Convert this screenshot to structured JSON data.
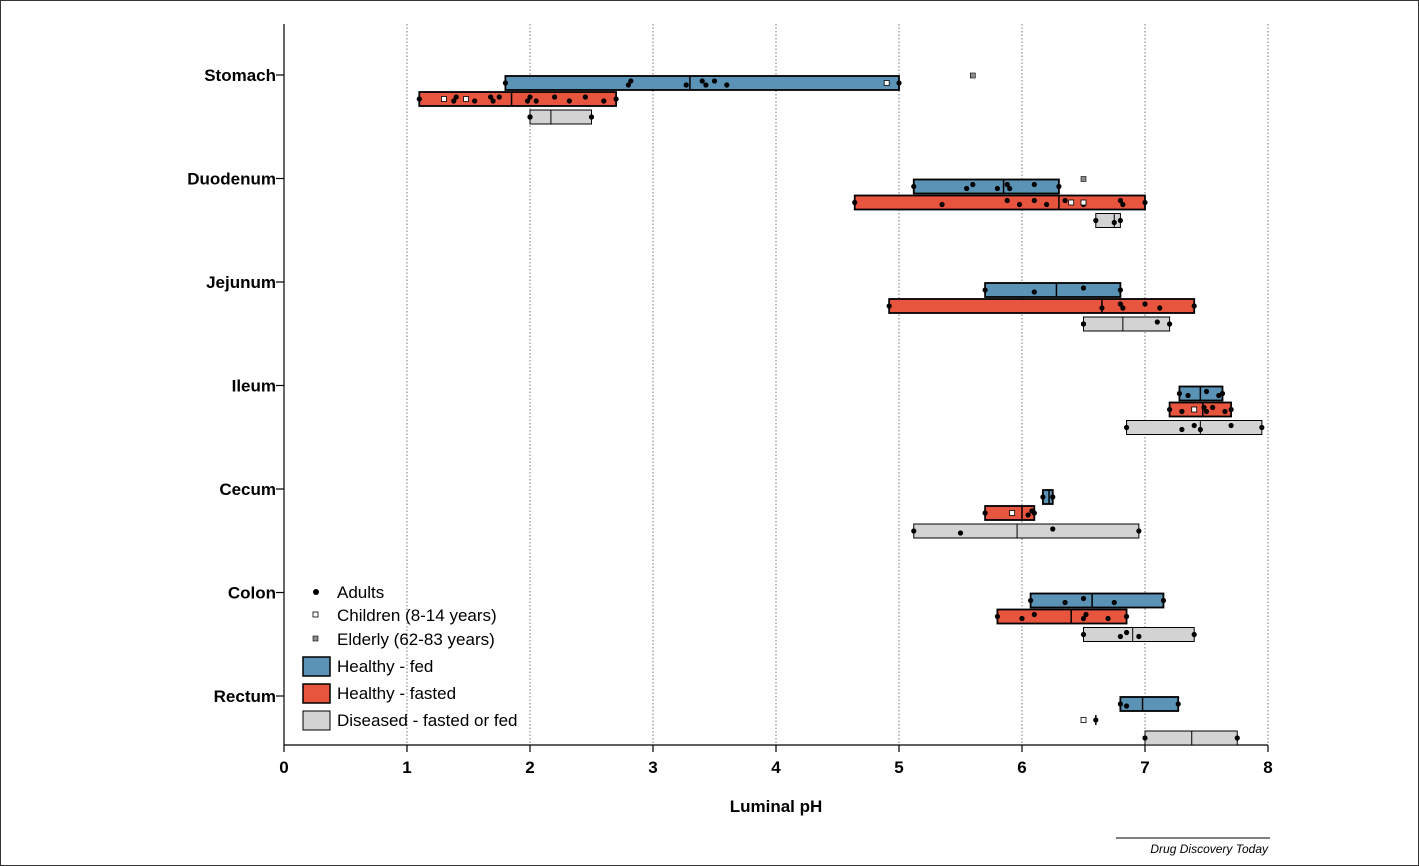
{
  "colors": {
    "fed": "#5a93b6",
    "fasted": "#e8553e",
    "diseased": "#d3d3d3",
    "elderly": "#8c8c8c"
  },
  "legend": {
    "adults": "Adults",
    "children": "Children (8-14 years)",
    "elderly": "Elderly (62-83 years)",
    "fed": "Healthy - fed",
    "fasted": "Healthy - fasted",
    "diseased": "Diseased - fasted or fed"
  },
  "source": "Drug Discovery Today",
  "chart_data": {
    "type": "range-bar",
    "xlabel": "Luminal pH",
    "xlim": [
      0,
      8
    ],
    "xticks": [
      "0",
      "1",
      "2",
      "3",
      "4",
      "5",
      "6",
      "7",
      "8"
    ],
    "categories": [
      "Stomach",
      "Duodenum",
      "Jejunum",
      "Ileum",
      "Cecum",
      "Colon",
      "Rectum"
    ],
    "grid": "vertical-dotted",
    "legend_position": "bottom-left",
    "series": [
      {
        "name": "Healthy - fed",
        "color_key": "fed",
        "ranges": [
          {
            "category": "Stomach",
            "min": 1.8,
            "max": 5.0,
            "median": 3.3,
            "adults": [
              1.8,
              2.8,
              2.82,
              3.27,
              3.4,
              3.43,
              3.5,
              3.6,
              5.0
            ],
            "children": [
              4.9
            ],
            "elderly": [
              5.6
            ]
          },
          {
            "category": "Duodenum",
            "min": 5.12,
            "max": 6.3,
            "median": 5.85,
            "adults": [
              5.12,
              5.55,
              5.6,
              5.8,
              5.88,
              5.9,
              6.1,
              6.3
            ],
            "children": [],
            "elderly": [
              6.5
            ]
          },
          {
            "category": "Jejunum",
            "min": 5.7,
            "max": 6.8,
            "median": 6.28,
            "adults": [
              5.7,
              6.1,
              6.5,
              6.8
            ],
            "children": [],
            "elderly": []
          },
          {
            "category": "Ileum",
            "min": 7.28,
            "max": 7.63,
            "median": 7.45,
            "adults": [
              7.28,
              7.35,
              7.5,
              7.6,
              7.63
            ],
            "children": [],
            "elderly": []
          },
          {
            "category": "Cecum",
            "min": 6.17,
            "max": 6.25,
            "median": 6.22,
            "adults": [
              6.17,
              6.25
            ],
            "children": [],
            "elderly": []
          },
          {
            "category": "Colon",
            "min": 6.07,
            "max": 7.15,
            "median": 6.57,
            "adults": [
              6.07,
              6.35,
              6.5,
              6.75,
              7.15
            ],
            "children": [],
            "elderly": []
          },
          {
            "category": "Rectum",
            "min": 6.8,
            "max": 7.27,
            "median": 6.98,
            "adults": [
              6.8,
              6.85,
              7.27
            ],
            "children": [],
            "elderly": []
          }
        ]
      },
      {
        "name": "Healthy - fasted",
        "color_key": "fasted",
        "ranges": [
          {
            "category": "Stomach",
            "min": 1.1,
            "max": 2.7,
            "median": 1.85,
            "adults": [
              1.1,
              1.38,
              1.4,
              1.55,
              1.68,
              1.7,
              1.75,
              1.98,
              2.0,
              2.05,
              2.2,
              2.32,
              2.45,
              2.6,
              2.7
            ],
            "children": [
              1.3,
              1.48
            ],
            "elderly": []
          },
          {
            "category": "Duodenum",
            "min": 4.64,
            "max": 7.0,
            "median": 6.3,
            "adults": [
              4.64,
              5.35,
              5.88,
              5.98,
              6.1,
              6.2,
              6.35,
              6.5,
              6.8,
              6.82,
              7.0
            ],
            "children": [
              6.4,
              6.5
            ],
            "elderly": []
          },
          {
            "category": "Jejunum",
            "min": 4.92,
            "max": 7.4,
            "median": 6.65,
            "adults": [
              4.92,
              6.65,
              6.8,
              6.82,
              7.0,
              7.12,
              7.4
            ],
            "children": [],
            "elderly": []
          },
          {
            "category": "Ileum",
            "min": 7.2,
            "max": 7.7,
            "median": 7.47,
            "adults": [
              7.2,
              7.3,
              7.48,
              7.5,
              7.55,
              7.65,
              7.7
            ],
            "children": [
              7.4
            ],
            "elderly": []
          },
          {
            "category": "Cecum",
            "min": 5.7,
            "max": 6.1,
            "median": 6.0,
            "adults": [
              5.7,
              6.05,
              6.08,
              6.1
            ],
            "children": [
              5.92
            ],
            "elderly": []
          },
          {
            "category": "Colon",
            "min": 5.8,
            "max": 6.85,
            "median": 6.4,
            "adults": [
              5.8,
              6.0,
              6.1,
              6.5,
              6.52,
              6.7,
              6.85
            ],
            "children": [],
            "elderly": []
          },
          {
            "category": "Rectum",
            "min": 6.6,
            "max": 6.6,
            "median": 6.6,
            "adults": [
              6.6
            ],
            "children": [
              6.5
            ],
            "elderly": []
          }
        ]
      },
      {
        "name": "Diseased - fasted or fed",
        "color_key": "diseased",
        "ranges": [
          {
            "category": "Stomach",
            "min": 2.0,
            "max": 2.5,
            "median": 2.17,
            "adults": [
              2.0,
              2.0,
              2.5
            ],
            "children": [],
            "elderly": []
          },
          {
            "category": "Duodenum",
            "min": 6.6,
            "max": 6.8,
            "median": 6.75,
            "adults": [
              6.6,
              6.75,
              6.8
            ],
            "children": [],
            "elderly": []
          },
          {
            "category": "Jejunum",
            "min": 6.5,
            "max": 7.2,
            "median": 6.82,
            "adults": [
              6.5,
              6.5,
              7.1,
              7.2
            ],
            "children": [],
            "elderly": []
          },
          {
            "category": "Ileum",
            "min": 6.85,
            "max": 7.95,
            "median": 7.45,
            "adults": [
              6.85,
              7.3,
              7.4,
              7.45,
              7.7,
              7.95
            ],
            "children": [],
            "elderly": []
          },
          {
            "category": "Cecum",
            "min": 5.12,
            "max": 6.95,
            "median": 5.96,
            "adults": [
              5.12,
              5.5,
              6.25,
              6.95
            ],
            "children": [],
            "elderly": []
          },
          {
            "category": "Colon",
            "min": 6.5,
            "max": 7.4,
            "median": 6.9,
            "adults": [
              6.5,
              6.8,
              6.85,
              6.95,
              7.4
            ],
            "children": [],
            "elderly": []
          },
          {
            "category": "Rectum",
            "min": 7.0,
            "max": 7.75,
            "median": 7.38,
            "adults": [
              7.0,
              7.75
            ],
            "children": [],
            "elderly": []
          }
        ]
      }
    ]
  }
}
